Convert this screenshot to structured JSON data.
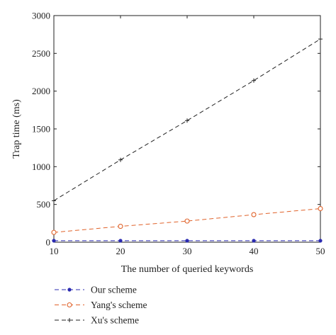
{
  "chart_data": {
    "type": "line",
    "xlabel": "The number of queried keywords",
    "ylabel": "Trap time (ms)",
    "xlim": [
      10,
      50
    ],
    "ylim": [
      0,
      3000
    ],
    "xticks": [
      10,
      20,
      30,
      40,
      50
    ],
    "yticks": [
      0,
      500,
      1000,
      1500,
      2000,
      2500,
      3000
    ],
    "grid": false,
    "legend_position": "bottom-left, below plot",
    "series": [
      {
        "name": "Our scheme",
        "color": "#2b2bb0",
        "line_style": "dashed",
        "marker": "filled-dot",
        "x": [
          10,
          20,
          30,
          40,
          50
        ],
        "y": [
          20,
          20,
          20,
          20,
          20
        ]
      },
      {
        "name": "Yang's scheme",
        "color": "#e0622a",
        "line_style": "dashed",
        "marker": "open-circle",
        "x": [
          10,
          20,
          30,
          40,
          50
        ],
        "y": [
          130,
          210,
          280,
          365,
          445
        ]
      },
      {
        "name": "Xu's scheme",
        "color": "#222222",
        "line_style": "dashed",
        "marker": "plus",
        "x": [
          10,
          20,
          30,
          40,
          50
        ],
        "y": [
          550,
          1090,
          1610,
          2140,
          2690
        ]
      }
    ]
  }
}
